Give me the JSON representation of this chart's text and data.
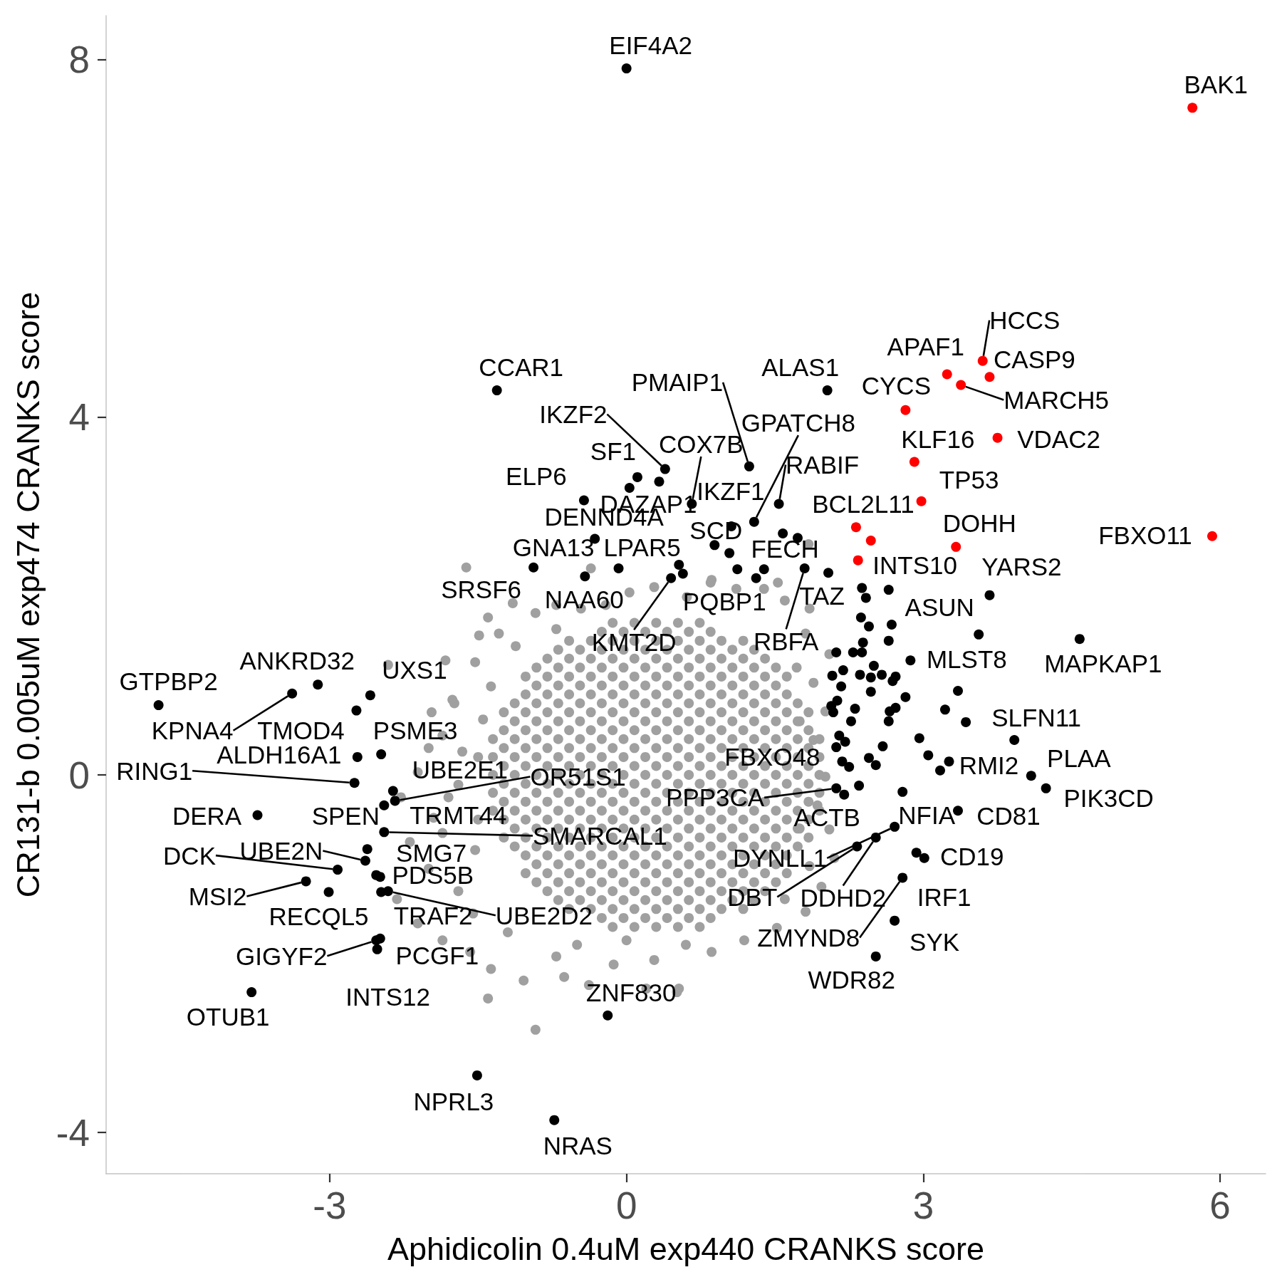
{
  "chart_data": {
    "type": "scatter",
    "xlabel": "Aphidicolin 0.4uM exp440 CRANKS score",
    "ylabel": "CR131-b 0.005uM exp474 CRANKS score",
    "xlim": [
      -5.26,
      6.46
    ],
    "ylim": [
      -4.46,
      8.49
    ],
    "xticks": [
      -3,
      0,
      3,
      6
    ],
    "yticks": [
      -4,
      0,
      4,
      8
    ],
    "marker": "circle",
    "series": [
      {
        "color": "#a0a0a0",
        "x": [
          -1.62,
          -1.15,
          -1.4,
          -1.29,
          -1.12,
          -1.53,
          -1.37,
          -1.74,
          -1.45,
          -1.86,
          -1.66,
          -2.11,
          -2.28,
          -1.95,
          -2.19,
          -2.32,
          -2.11,
          -1.86,
          -1.58,
          -1.37,
          -1.4,
          -0.92,
          -1.04,
          -0.63,
          -0.38,
          0.2,
          0.53,
          0.28,
          0.86,
          1.19,
          1.52,
          1.81,
          1.97,
          2.1,
          2.05,
          1.93,
          2.01,
          1.89,
          2.01,
          1.89,
          2.05,
          1.81,
          1.85,
          1.6,
          1.39,
          1.11,
          0.86,
          0.61,
          0.28,
          0.03,
          -0.21,
          -0.46,
          -0.71,
          -0.92,
          -0.71,
          -1.7,
          -1.53,
          -1.7,
          -1.2,
          -0.71,
          -0.13,
          1.6,
          1.85,
          0.51,
          -1.49,
          -1.83,
          -1.76,
          -1.97,
          -2.41,
          -0.36,
          0.85,
          1.53,
          1.84,
          -2,
          -1.8,
          -2,
          -1.5,
          -1.5,
          -1.55,
          1.75,
          1.75,
          1.72,
          0,
          0.6,
          -0.5,
          -1.86,
          -0.14,
          0.08,
          0.3,
          0.52,
          0.74,
          -0.25,
          -0.03,
          0.19,
          0.41,
          0.63,
          0.85,
          -0.58,
          -0.36,
          -0.14,
          0.08,
          0.3,
          0.52,
          0.74,
          0.96,
          1.18,
          -0.69,
          -0.47,
          -0.25,
          -0.03,
          0.19,
          0.41,
          0.63,
          0.85,
          1.07,
          1.29,
          -0.8,
          -0.58,
          -0.36,
          -0.14,
          0.08,
          0.3,
          0.52,
          0.74,
          0.96,
          1.18,
          1.4,
          -0.91,
          -0.69,
          -0.47,
          -0.25,
          -0.03,
          0.19,
          0.41,
          0.63,
          0.85,
          1.07,
          1.29,
          1.51,
          -1.02,
          -0.8,
          -0.58,
          -0.36,
          -0.14,
          0.08,
          0.3,
          0.52,
          0.74,
          0.96,
          1.18,
          1.4,
          1.62,
          -0.91,
          -0.69,
          -0.47,
          -0.25,
          -0.03,
          0.19,
          0.41,
          0.63,
          0.85,
          1.07,
          1.29,
          1.51,
          -1.02,
          -0.8,
          -0.58,
          -0.36,
          -0.14,
          0.08,
          0.3,
          0.52,
          0.74,
          0.96,
          1.18,
          1.4,
          1.62,
          -1.13,
          -0.91,
          -0.69,
          -0.47,
          -0.25,
          -0.03,
          0.19,
          0.41,
          0.63,
          0.85,
          1.07,
          1.29,
          1.51,
          1.73,
          -1.24,
          -1.02,
          -0.8,
          -0.58,
          -0.36,
          -0.14,
          0.08,
          0.3,
          0.52,
          0.74,
          0.96,
          1.18,
          1.4,
          1.62,
          1.84,
          -1.13,
          -0.91,
          -0.69,
          -0.47,
          -0.25,
          -0.03,
          0.19,
          0.41,
          0.63,
          0.85,
          1.07,
          1.29,
          1.51,
          1.73,
          -1.24,
          -1.02,
          -0.8,
          -0.58,
          -0.36,
          -0.14,
          0.08,
          0.3,
          0.52,
          0.74,
          0.96,
          1.18,
          1.4,
          1.62,
          1.84,
          -1.35,
          -1.13,
          -0.91,
          -0.69,
          -0.47,
          -0.25,
          -0.03,
          0.19,
          0.41,
          0.63,
          0.85,
          1.07,
          1.29,
          1.51,
          1.73,
          1.95,
          -1.24,
          -1.02,
          -0.8,
          -0.58,
          -0.36,
          -0.14,
          0.08,
          0.3,
          0.52,
          0.74,
          0.96,
          1.18,
          1.4,
          1.62,
          1.84,
          -1.35,
          -1.13,
          -0.91,
          -0.69,
          -0.47,
          -0.25,
          -0.03,
          0.19,
          0.41,
          0.63,
          0.85,
          1.07,
          1.29,
          1.51,
          1.73,
          1.95,
          -1.24,
          -1.02,
          -0.8,
          -0.58,
          -0.36,
          -0.14,
          0.08,
          0.3,
          0.52,
          0.74,
          0.96,
          1.18,
          1.4,
          1.62,
          1.84,
          -1.35,
          -1.13,
          -0.91,
          -0.69,
          -0.47,
          -0.25,
          -0.03,
          0.19,
          0.41,
          0.63,
          0.85,
          1.07,
          1.29,
          1.51,
          1.73,
          1.95,
          -1.24,
          -1.02,
          -0.8,
          -0.58,
          -0.36,
          -0.14,
          0.08,
          0.3,
          0.52,
          0.74,
          0.96,
          1.18,
          1.4,
          1.62,
          1.84,
          -1.35,
          -1.13,
          -0.91,
          -0.69,
          -0.47,
          -0.25,
          -0.03,
          0.19,
          0.41,
          0.63,
          0.85,
          1.07,
          1.29,
          1.51,
          1.73,
          1.95,
          -1.24,
          -1.02,
          -0.8,
          -0.58,
          -0.36,
          -0.14,
          0.08,
          0.3,
          0.52,
          0.74,
          0.96,
          1.18,
          1.4,
          1.62,
          1.84,
          -1.35,
          -1.13,
          -0.91,
          -0.69,
          -0.47,
          -0.25,
          -0.03,
          0.19,
          0.41,
          0.63,
          0.85,
          1.07,
          1.29,
          1.51,
          1.73,
          1.95,
          -1.24,
          -1.02,
          -0.8,
          -0.58,
          -0.36,
          -0.14,
          0.08,
          0.3,
          0.52,
          0.74,
          0.96,
          1.18,
          1.4,
          1.62,
          1.84,
          -1.13,
          -0.91,
          -0.69,
          -0.47,
          -0.25,
          -0.03,
          0.19,
          0.41,
          0.63,
          0.85,
          1.07,
          1.29,
          1.51,
          1.73,
          -1.24,
          -1.02,
          -0.8,
          -0.58,
          -0.36,
          -0.14,
          0.08,
          0.3,
          0.52,
          0.74,
          0.96,
          1.18,
          1.4,
          1.62,
          1.84,
          -1.13,
          -0.91,
          -0.69,
          -0.47,
          -0.25,
          -0.03,
          0.19,
          0.41,
          0.63,
          0.85,
          1.07,
          1.29,
          1.51,
          1.73,
          -1.02,
          -0.8,
          -0.58,
          -0.36,
          -0.14,
          0.08,
          0.3,
          0.52,
          0.74,
          0.96,
          1.18,
          1.4,
          1.62,
          -0.91,
          -0.69,
          -0.47,
          -0.25,
          -0.03,
          0.19,
          0.41,
          0.63,
          0.85,
          1.07,
          1.29,
          1.51,
          -1.02,
          -0.8,
          -0.58,
          -0.36,
          -0.14,
          0.08,
          0.3,
          0.52,
          0.74,
          0.96,
          1.18,
          1.4,
          1.62,
          -0.91,
          -0.69,
          -0.47,
          -0.25,
          -0.03,
          0.19,
          0.41,
          0.63,
          0.85,
          1.07,
          1.29,
          1.51,
          -0.8,
          -0.58,
          -0.36,
          -0.14,
          0.08,
          0.3,
          0.52,
          0.74,
          0.96,
          1.18,
          1.4,
          -0.69,
          -0.47,
          -0.25,
          -0.03,
          0.19,
          0.41,
          0.63,
          0.85,
          1.07,
          1.29,
          -0.58,
          -0.36,
          -0.14,
          0.08,
          0.3,
          0.52,
          0.74,
          0.96,
          1.18,
          -0.25,
          -0.03,
          0.19,
          0.41,
          0.63,
          0.85,
          -0.14,
          0.08,
          0.3,
          0.52,
          0.74
        ],
        "values": [
          2.32,
          1.92,
          1.76,
          1.58,
          1.44,
          1.26,
          0.99,
          0.8,
          0.62,
          0.44,
          0.26,
          0.03,
          -0.25,
          -0.48,
          -0.75,
          -1.39,
          -1.66,
          -1.85,
          -1.98,
          -2.17,
          -2.5,
          -2.85,
          -2.3,
          -2.26,
          -2.35,
          -2.39,
          -2.39,
          -2.07,
          -1.98,
          -1.85,
          -1.71,
          -1.53,
          -1.25,
          -0.93,
          -0.61,
          -0.34,
          -0.02,
          0.39,
          0.71,
          1.03,
          1.35,
          1.58,
          1.86,
          1.95,
          2.08,
          2.08,
          2.18,
          1.99,
          2.1,
          2.04,
          1.9,
          1.86,
          1.9,
          1.81,
          1.63,
          -0.11,
          -0.84,
          -1.3,
          -1.76,
          -2.03,
          -2.12,
          -1.39,
          -1.02,
          -2.43,
          1.56,
          1.28,
          0.84,
          0.7,
          1.23,
          2.31,
          2.15,
          2.15,
          2.58,
          -1.05,
          -0.25,
          0.3,
          -0.5,
          0.2,
          -1.55,
          -0.6,
          0.6,
          1.2,
          -1.85,
          -1.9,
          -1.9,
          -0.65,
          1.7,
          1.7,
          1.7,
          1.7,
          1.7,
          1.6,
          1.6,
          1.6,
          1.6,
          1.6,
          1.6,
          1.5,
          1.5,
          1.5,
          1.5,
          1.5,
          1.5,
          1.5,
          1.5,
          1.5,
          1.4,
          1.4,
          1.4,
          1.4,
          1.4,
          1.4,
          1.4,
          1.4,
          1.4,
          1.4,
          1.3,
          1.3,
          1.3,
          1.3,
          1.3,
          1.3,
          1.3,
          1.3,
          1.3,
          1.3,
          1.3,
          1.2,
          1.2,
          1.2,
          1.2,
          1.2,
          1.2,
          1.2,
          1.2,
          1.2,
          1.2,
          1.2,
          1.2,
          1.1,
          1.1,
          1.1,
          1.1,
          1.1,
          1.1,
          1.1,
          1.1,
          1.1,
          1.1,
          1.1,
          1.1,
          1.1,
          1,
          1,
          1,
          1,
          1,
          1,
          1,
          1,
          1,
          1,
          1,
          1,
          0.9,
          0.9,
          0.9,
          0.9,
          0.9,
          0.9,
          0.9,
          0.9,
          0.9,
          0.9,
          0.9,
          0.9,
          0.9,
          0.8,
          0.8,
          0.8,
          0.8,
          0.8,
          0.8,
          0.8,
          0.8,
          0.8,
          0.8,
          0.8,
          0.8,
          0.8,
          0.8,
          0.7,
          0.7,
          0.7,
          0.7,
          0.7,
          0.7,
          0.7,
          0.7,
          0.7,
          0.7,
          0.7,
          0.7,
          0.7,
          0.7,
          0.7,
          0.6,
          0.6,
          0.6,
          0.6,
          0.6,
          0.6,
          0.6,
          0.6,
          0.6,
          0.6,
          0.6,
          0.6,
          0.6,
          0.6,
          0.5,
          0.5,
          0.5,
          0.5,
          0.5,
          0.5,
          0.5,
          0.5,
          0.5,
          0.5,
          0.5,
          0.5,
          0.5,
          0.5,
          0.5,
          0.4,
          0.4,
          0.4,
          0.4,
          0.4,
          0.4,
          0.4,
          0.4,
          0.4,
          0.4,
          0.4,
          0.4,
          0.4,
          0.4,
          0.4,
          0.4,
          0.3,
          0.3,
          0.3,
          0.3,
          0.3,
          0.3,
          0.3,
          0.3,
          0.3,
          0.3,
          0.3,
          0.3,
          0.3,
          0.3,
          0.3,
          0.2,
          0.2,
          0.2,
          0.2,
          0.2,
          0.2,
          0.2,
          0.2,
          0.2,
          0.2,
          0.2,
          0.2,
          0.2,
          0.2,
          0.2,
          0.2,
          0.1,
          0.1,
          0.1,
          0.1,
          0.1,
          0.1,
          0.1,
          0.1,
          0.1,
          0.1,
          0.1,
          0.1,
          0.1,
          0.1,
          0.1,
          0,
          0,
          0,
          0,
          0,
          0,
          0,
          0,
          0,
          0,
          0,
          0,
          0,
          0,
          0,
          0,
          -0.1,
          -0.1,
          -0.1,
          -0.1,
          -0.1,
          -0.1,
          -0.1,
          -0.1,
          -0.1,
          -0.1,
          -0.1,
          -0.1,
          -0.1,
          -0.1,
          -0.1,
          -0.2,
          -0.2,
          -0.2,
          -0.2,
          -0.2,
          -0.2,
          -0.2,
          -0.2,
          -0.2,
          -0.2,
          -0.2,
          -0.2,
          -0.2,
          -0.2,
          -0.2,
          -0.2,
          -0.3,
          -0.3,
          -0.3,
          -0.3,
          -0.3,
          -0.3,
          -0.3,
          -0.3,
          -0.3,
          -0.3,
          -0.3,
          -0.3,
          -0.3,
          -0.3,
          -0.3,
          -0.4,
          -0.4,
          -0.4,
          -0.4,
          -0.4,
          -0.4,
          -0.4,
          -0.4,
          -0.4,
          -0.4,
          -0.4,
          -0.4,
          -0.4,
          -0.4,
          -0.4,
          -0.4,
          -0.5,
          -0.5,
          -0.5,
          -0.5,
          -0.5,
          -0.5,
          -0.5,
          -0.5,
          -0.5,
          -0.5,
          -0.5,
          -0.5,
          -0.5,
          -0.5,
          -0.5,
          -0.6,
          -0.6,
          -0.6,
          -0.6,
          -0.6,
          -0.6,
          -0.6,
          -0.6,
          -0.6,
          -0.6,
          -0.6,
          -0.6,
          -0.6,
          -0.6,
          -0.7,
          -0.7,
          -0.7,
          -0.7,
          -0.7,
          -0.7,
          -0.7,
          -0.7,
          -0.7,
          -0.7,
          -0.7,
          -0.7,
          -0.7,
          -0.7,
          -0.7,
          -0.8,
          -0.8,
          -0.8,
          -0.8,
          -0.8,
          -0.8,
          -0.8,
          -0.8,
          -0.8,
          -0.8,
          -0.8,
          -0.8,
          -0.8,
          -0.8,
          -0.9,
          -0.9,
          -0.9,
          -0.9,
          -0.9,
          -0.9,
          -0.9,
          -0.9,
          -0.9,
          -0.9,
          -0.9,
          -0.9,
          -0.9,
          -1,
          -1,
          -1,
          -1,
          -1,
          -1,
          -1,
          -1,
          -1,
          -1,
          -1,
          -1,
          -1.1,
          -1.1,
          -1.1,
          -1.1,
          -1.1,
          -1.1,
          -1.1,
          -1.1,
          -1.1,
          -1.1,
          -1.1,
          -1.1,
          -1.1,
          -1.2,
          -1.2,
          -1.2,
          -1.2,
          -1.2,
          -1.2,
          -1.2,
          -1.2,
          -1.2,
          -1.2,
          -1.2,
          -1.2,
          -1.3,
          -1.3,
          -1.3,
          -1.3,
          -1.3,
          -1.3,
          -1.3,
          -1.3,
          -1.3,
          -1.3,
          -1.3,
          -1.4,
          -1.4,
          -1.4,
          -1.4,
          -1.4,
          -1.4,
          -1.4,
          -1.4,
          -1.4,
          -1.4,
          -1.5,
          -1.5,
          -1.5,
          -1.5,
          -1.5,
          -1.5,
          -1.5,
          -1.5,
          -1.5,
          -1.6,
          -1.6,
          -1.6,
          -1.6,
          -1.6,
          -1.6,
          -1.7,
          -1.7,
          -1.7,
          -1.7,
          -1.7
        ]
      },
      {
        "color": "#000000",
        "x": [
          0,
          3.67,
          3.56,
          2.87,
          4.58,
          3.92,
          4.09,
          4.24,
          3.26,
          3.35,
          2.79,
          3.01,
          2.93,
          2.71,
          2.52,
          2.33,
          2.79,
          2.71,
          2.52,
          2.2,
          2.12,
          2.18,
          2.03,
          -1.31,
          1.24,
          0.39,
          1.29,
          0.11,
          0.66,
          1.54,
          1.06,
          0.33,
          -0.43,
          -0.32,
          -0.94,
          -0.08,
          0.89,
          1.58,
          -0.42,
          1.12,
          2.04,
          0.45,
          1.8,
          -4.73,
          -3.12,
          -2.59,
          -3.38,
          -2.73,
          -2.48,
          -2.75,
          -2.72,
          -2.36,
          -2.34,
          -2.45,
          -2.53,
          -2.45,
          -3.73,
          -2.92,
          -2.64,
          -2.62,
          -2.49,
          -3.24,
          -3.01,
          -2.48,
          -2.41,
          -2.53,
          -2.49,
          -2.52,
          -3.79,
          -0.19,
          -1.51,
          -0.73,
          0.03,
          1.04,
          0.53,
          0.57,
          1.73,
          1.39,
          1.31,
          2.65,
          2.38,
          2.42,
          2.37,
          2.45,
          2.68,
          2.65,
          2.39,
          2.12,
          2.29,
          2.38,
          2.19,
          2.36,
          2.5,
          2.47,
          2.58,
          2.72,
          2.47,
          2.82,
          2.17,
          2.08,
          3.35,
          3.22,
          3.43,
          3.05,
          2.96,
          3.17,
          2.35,
          2.25,
          2.12,
          2.15,
          2.21,
          2.45,
          2.52,
          2.59,
          2.66,
          2.72,
          2.65,
          2.27,
          2.31,
          2.09,
          2.69,
          2.07,
          2.13
        ],
        "values": [
          7.9,
          2.01,
          1.57,
          1.28,
          1.52,
          0.39,
          -0.01,
          -0.15,
          0.15,
          -0.4,
          -0.19,
          -0.93,
          -0.87,
          -0.58,
          -0.7,
          -0.8,
          -1.15,
          -1.63,
          -2.03,
          -0.22,
          -0.15,
          0.15,
          4.3,
          4.3,
          3.45,
          3.42,
          2.83,
          3.33,
          3.03,
          3.03,
          2.78,
          3.28,
          3.07,
          2.64,
          2.32,
          2.31,
          2.57,
          2.7,
          2.22,
          2.3,
          2.26,
          2.2,
          2.31,
          0.78,
          1.01,
          0.89,
          0.91,
          0.72,
          0.23,
          -0.09,
          0.2,
          -0.18,
          -0.29,
          -0.34,
          -1.12,
          -0.64,
          -0.45,
          -1.06,
          -0.96,
          -0.83,
          -1.14,
          -1.19,
          -1.31,
          -1.31,
          -1.3,
          -1.85,
          -1.83,
          -1.95,
          -2.43,
          -2.69,
          -3.36,
          -3.86,
          3.21,
          2.48,
          2.35,
          2.25,
          2.65,
          2.3,
          2.2,
          2.07,
          2.09,
          1.98,
          1.76,
          1.66,
          1.68,
          1.5,
          1.48,
          1.37,
          1.37,
          1.37,
          1.17,
          1.12,
          1.22,
          1.09,
          1.12,
          1.1,
          0.93,
          0.87,
          0.99,
          1.11,
          0.94,
          0.73,
          0.59,
          0.22,
          0.41,
          0.05,
          -0.12,
          0.09,
          0.31,
          0.44,
          0.37,
          0.19,
          0.11,
          0.32,
          0.71,
          0.75,
          0.6,
          0.6,
          0.74,
          0.7,
          1.05,
          0.77,
          0.83
        ]
      },
      {
        "color": "#ff0000",
        "x": [
          5.72,
          3.6,
          3.67,
          3.24,
          3.38,
          2.82,
          3.75,
          2.91,
          2.98,
          2.32,
          2.47,
          2.34,
          3.33,
          5.92
        ],
        "values": [
          7.46,
          4.63,
          4.45,
          4.48,
          4.36,
          4.08,
          3.77,
          3.5,
          3.06,
          2.77,
          2.62,
          2.4,
          2.55,
          2.67
        ]
      }
    ],
    "annotations": [
      {
        "text": "EIF4A2",
        "x": 0,
        "y": 7.9
      },
      {
        "text": "BAK1",
        "x": 5.72,
        "y": 7.46
      },
      {
        "text": "HCCS",
        "x": 3.6,
        "y": 4.63
      },
      {
        "text": "APAF1",
        "x": 3.24,
        "y": 4.48
      },
      {
        "text": "CASP9",
        "x": 3.67,
        "y": 4.45
      },
      {
        "text": "MARCH5",
        "x": 3.38,
        "y": 4.36
      },
      {
        "text": "CYCS",
        "x": 2.82,
        "y": 4.08
      },
      {
        "text": "VDAC2",
        "x": 3.75,
        "y": 3.77
      },
      {
        "text": "KLF16",
        "x": 2.91,
        "y": 3.5
      },
      {
        "text": "TP53",
        "x": 2.98,
        "y": 3.06
      },
      {
        "text": "BCL2L11",
        "x": 2.32,
        "y": 2.77
      },
      {
        "text": "INTS10",
        "x": 2.34,
        "y": 2.4
      },
      {
        "text": "DOHH",
        "x": 3.33,
        "y": 2.55
      },
      {
        "text": "FBXO11",
        "x": 5.92,
        "y": 2.67
      },
      {
        "text": "YARS2",
        "x": 3.67,
        "y": 2.01
      },
      {
        "text": "ASUN",
        "x": 3.56,
        "y": 1.57
      },
      {
        "text": "MLST8",
        "x": 2.87,
        "y": 1.28
      },
      {
        "text": "MAPKAP1",
        "x": 4.58,
        "y": 1.52
      },
      {
        "text": "SLFN11",
        "x": 3.92,
        "y": 0.39
      },
      {
        "text": "PLAA",
        "x": 4.09,
        "y": -0.01
      },
      {
        "text": "PIK3CD",
        "x": 4.24,
        "y": -0.15
      },
      {
        "text": "RMI2",
        "x": 3.26,
        "y": 0.15
      },
      {
        "text": "CD81",
        "x": 3.35,
        "y": -0.4
      },
      {
        "text": "NFIA",
        "x": 2.79,
        "y": -0.19
      },
      {
        "text": "CD19",
        "x": 3.01,
        "y": -0.93
      },
      {
        "text": "IRF1",
        "x": 2.93,
        "y": -0.87
      },
      {
        "text": "DYNLL1",
        "x": 2.71,
        "y": -0.58
      },
      {
        "text": "DDHD2",
        "x": 2.52,
        "y": -0.7
      },
      {
        "text": "DBT",
        "x": 2.33,
        "y": -0.8
      },
      {
        "text": "ZMYND8",
        "x": 2.79,
        "y": -1.15
      },
      {
        "text": "SYK",
        "x": 2.71,
        "y": -1.63
      },
      {
        "text": "WDR82",
        "x": 2.52,
        "y": -2.03
      },
      {
        "text": "ACTB",
        "x": 2.2,
        "y": -0.22
      },
      {
        "text": "PPP3CA",
        "x": 2.12,
        "y": -0.15
      },
      {
        "text": "FBXO48",
        "x": 2.18,
        "y": 0.15
      },
      {
        "text": "ALAS1",
        "x": 2.03,
        "y": 4.3
      },
      {
        "text": "CCAR1",
        "x": -1.31,
        "y": 4.3
      },
      {
        "text": "PMAIP1",
        "x": 1.24,
        "y": 3.45
      },
      {
        "text": "IKZF2",
        "x": 0.39,
        "y": 3.42
      },
      {
        "text": "GPATCH8",
        "x": 1.29,
        "y": 2.83
      },
      {
        "text": "SF1",
        "x": 0.11,
        "y": 3.33
      },
      {
        "text": "COX7B",
        "x": 0.66,
        "y": 3.03
      },
      {
        "text": "RABIF",
        "x": 1.54,
        "y": 3.03
      },
      {
        "text": "IKZF1",
        "x": 1.06,
        "y": 2.78
      },
      {
        "text": "DAZAP1",
        "x": 0.33,
        "y": 3.28
      },
      {
        "text": "ELP6",
        "x": -0.43,
        "y": 3.07
      },
      {
        "text": "DENND4A",
        "x": -0.32,
        "y": 2.64
      },
      {
        "text": "GNA13",
        "x": -0.94,
        "y": 2.32
      },
      {
        "text": "LPAR5",
        "x": -0.08,
        "y": 2.31
      },
      {
        "text": "SCD",
        "x": 0.89,
        "y": 2.57
      },
      {
        "text": "FECH",
        "x": 1.58,
        "y": 2.7
      },
      {
        "text": "SRSF6",
        "x": -1.62,
        "y": 2.32
      },
      {
        "text": "NAA60",
        "x": -0.42,
        "y": 2.22
      },
      {
        "text": "PQBP1",
        "x": 1.12,
        "y": 2.3
      },
      {
        "text": "TAZ",
        "x": 2.04,
        "y": 2.26
      },
      {
        "text": "KMT2D",
        "x": 0.45,
        "y": 2.2
      },
      {
        "text": "RBFA",
        "x": 1.8,
        "y": 2.31
      },
      {
        "text": "GTPBP2",
        "x": -4.73,
        "y": 0.78
      },
      {
        "text": "ANKRD32",
        "x": -3.12,
        "y": 1.01
      },
      {
        "text": "UXS1",
        "x": -2.59,
        "y": 0.89
      },
      {
        "text": "KPNA4",
        "x": -3.38,
        "y": 0.91
      },
      {
        "text": "TMOD4",
        "x": -2.73,
        "y": 0.72
      },
      {
        "text": "PSME3",
        "x": -2.48,
        "y": 0.23
      },
      {
        "text": "RING1",
        "x": -2.75,
        "y": -0.09
      },
      {
        "text": "ALDH16A1",
        "x": -2.72,
        "y": 0.2
      },
      {
        "text": "UBE2E1",
        "x": -2.36,
        "y": -0.18
      },
      {
        "text": "OR51S1",
        "x": -2.34,
        "y": -0.29
      },
      {
        "text": "SPEN",
        "x": -2.45,
        "y": -0.34
      },
      {
        "text": "TRMT44",
        "x": -1.86,
        "y": -0.65
      },
      {
        "text": "SMARCAL1",
        "x": -2.45,
        "y": -0.64
      },
      {
        "text": "DERA",
        "x": -3.73,
        "y": -0.45
      },
      {
        "text": "DCK",
        "x": -2.92,
        "y": -1.06
      },
      {
        "text": "UBE2N",
        "x": -2.64,
        "y": -0.96
      },
      {
        "text": "SMG7",
        "x": -2.62,
        "y": -0.83
      },
      {
        "text": "PDS5B",
        "x": -2.49,
        "y": -1.14
      },
      {
        "text": "MSI2",
        "x": -3.24,
        "y": -1.19
      },
      {
        "text": "RECQL5",
        "x": -3.01,
        "y": -1.31
      },
      {
        "text": "TRAF2",
        "x": -2.48,
        "y": -1.31
      },
      {
        "text": "UBE2D2",
        "x": -2.41,
        "y": -1.3
      },
      {
        "text": "GIGYF2",
        "x": -2.53,
        "y": -1.85
      },
      {
        "text": "PCGF1",
        "x": -2.49,
        "y": -1.83
      },
      {
        "text": "INTS12",
        "x": -2.52,
        "y": -1.95
      },
      {
        "text": "OTUB1",
        "x": -3.79,
        "y": -2.43
      },
      {
        "text": "ZNF830",
        "x": -0.19,
        "y": -2.69
      },
      {
        "text": "NPRL3",
        "x": -1.51,
        "y": -3.36
      },
      {
        "text": "NRAS",
        "x": -0.73,
        "y": -3.86
      }
    ]
  }
}
